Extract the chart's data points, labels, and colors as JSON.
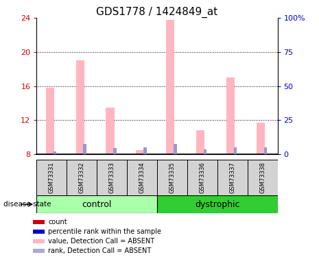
{
  "title": "GDS1778 / 1424849_at",
  "samples": [
    "GSM73331",
    "GSM73332",
    "GSM73333",
    "GSM73334",
    "GSM73335",
    "GSM73336",
    "GSM73337",
    "GSM73338"
  ],
  "pink_values": [
    15.8,
    19.0,
    13.5,
    8.5,
    23.8,
    10.8,
    17.0,
    11.7
  ],
  "blue_values": [
    8.3,
    9.2,
    8.7,
    8.8,
    9.2,
    8.6,
    8.8,
    8.8
  ],
  "ylim_left": [
    8,
    24
  ],
  "ylim_right": [
    0,
    100
  ],
  "yticks_left": [
    8,
    12,
    16,
    20,
    24
  ],
  "yticks_right": [
    0,
    25,
    50,
    75,
    100
  ],
  "ytick_labels_right": [
    "0",
    "25",
    "50",
    "75",
    "100%"
  ],
  "pink_color": "#FFB6C1",
  "blue_color": "#9999CC",
  "bg_color": "#FFFFFF",
  "plot_bg": "#FFFFFF",
  "left_tick_color": "#CC0000",
  "right_tick_color": "#0000CC",
  "title_fontsize": 11,
  "tick_fontsize": 8,
  "sample_label_fontsize": 6,
  "group_label_fontsize": 9,
  "disease_state_label": "disease state",
  "control_color": "#AAFFAA",
  "dystrophic_color": "#33CC33",
  "sample_box_color": "#D3D3D3",
  "legend_items": [
    {
      "color": "#CC0000",
      "label": "count"
    },
    {
      "color": "#0000CC",
      "label": "percentile rank within the sample"
    },
    {
      "color": "#FFB6C1",
      "label": "value, Detection Call = ABSENT"
    },
    {
      "color": "#AAAADD",
      "label": "rank, Detection Call = ABSENT"
    }
  ]
}
